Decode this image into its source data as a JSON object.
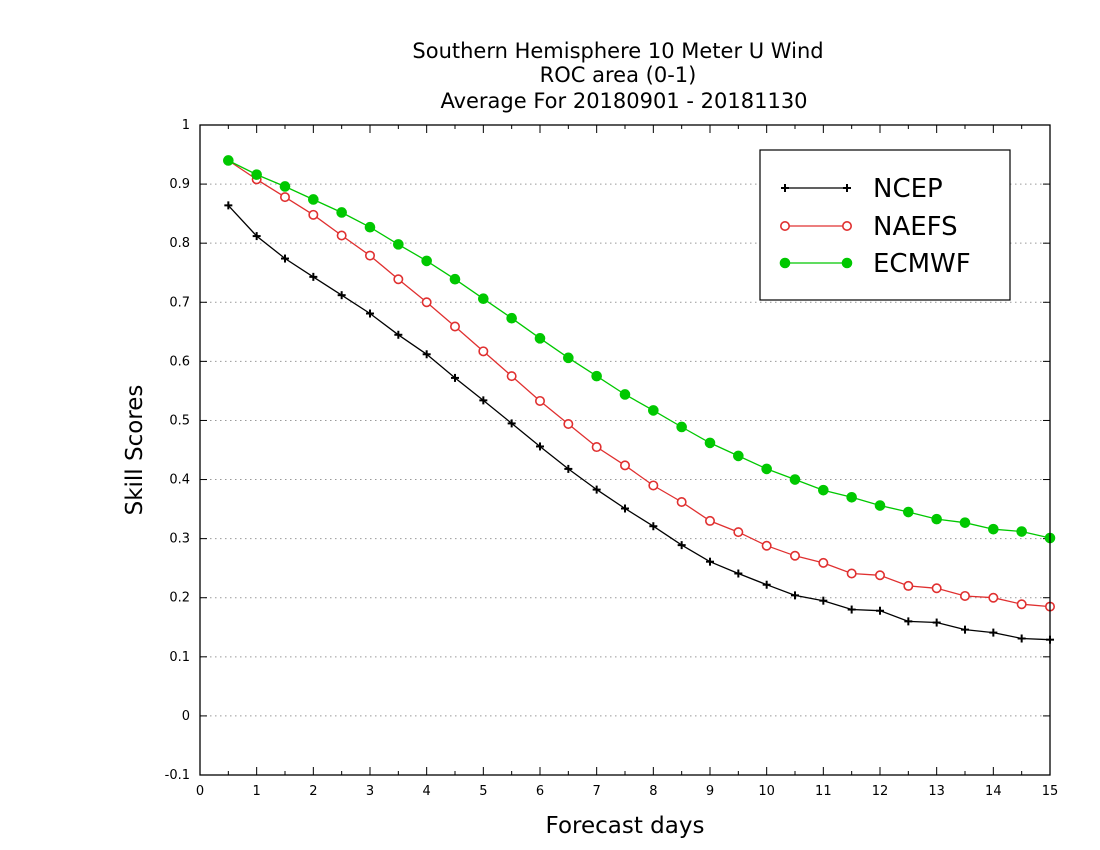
{
  "chart_data": {
    "type": "line",
    "title_lines": [
      "Southern Hemisphere 10 Meter U Wind",
      "ROC area (0-1)",
      "Average For 20180901 - 20181130"
    ],
    "xlabel": "Forecast days",
    "ylabel": "Skill Scores",
    "xlim": [
      0,
      15
    ],
    "ylim": [
      -0.1,
      1
    ],
    "x_ticks": [
      0,
      1,
      2,
      3,
      4,
      5,
      6,
      7,
      8,
      9,
      10,
      11,
      12,
      13,
      14,
      15
    ],
    "x_tick_labels": [
      "0",
      "1",
      "2",
      "3",
      "4",
      "5",
      "6",
      "7",
      "8",
      "9",
      "10",
      "11",
      "12",
      "13",
      "14",
      "15"
    ],
    "y_ticks": [
      -0.1,
      0,
      0.1,
      0.2,
      0.3,
      0.4,
      0.5,
      0.6,
      0.7,
      0.8,
      0.9,
      1
    ],
    "y_tick_labels": [
      "-0.1",
      "0",
      "0.1",
      "0.2",
      "0.3",
      "0.4",
      "0.5",
      "0.6",
      "0.7",
      "0.8",
      "0.9",
      "1"
    ],
    "grid": "horizontal dotted",
    "legend_position": "top-right",
    "x": [
      0.5,
      1,
      1.5,
      2,
      2.5,
      3,
      3.5,
      4,
      4.5,
      5,
      5.5,
      6,
      6.5,
      7,
      7.5,
      8,
      8.5,
      9,
      9.5,
      10,
      10.5,
      11,
      11.5,
      12,
      12.5,
      13,
      13.5,
      14,
      14.5,
      15
    ],
    "series": [
      {
        "name": "NCEP",
        "color": "#000000",
        "marker": "plus",
        "values": [
          0.864,
          0.812,
          0.774,
          0.743,
          0.712,
          0.681,
          0.645,
          0.612,
          0.572,
          0.534,
          0.495,
          0.456,
          0.418,
          0.383,
          0.351,
          0.321,
          0.289,
          0.261,
          0.241,
          0.222,
          0.204,
          0.195,
          0.18,
          0.178,
          0.16,
          0.158,
          0.146,
          0.141,
          0.131,
          0.129
        ]
      },
      {
        "name": "NAEFS",
        "color": "#e03030",
        "marker": "open-circle",
        "values": [
          0.94,
          0.908,
          0.878,
          0.848,
          0.813,
          0.779,
          0.739,
          0.7,
          0.659,
          0.617,
          0.575,
          0.533,
          0.494,
          0.455,
          0.424,
          0.39,
          0.362,
          0.33,
          0.311,
          0.288,
          0.271,
          0.259,
          0.241,
          0.238,
          0.22,
          0.216,
          0.203,
          0.2,
          0.189,
          0.185
        ]
      },
      {
        "name": "ECMWF",
        "color": "#00c800",
        "marker": "filled-circle",
        "values": [
          0.94,
          0.916,
          0.896,
          0.874,
          0.852,
          0.827,
          0.798,
          0.77,
          0.739,
          0.706,
          0.673,
          0.639,
          0.606,
          0.575,
          0.544,
          0.517,
          0.489,
          0.462,
          0.44,
          0.418,
          0.4,
          0.382,
          0.37,
          0.356,
          0.345,
          0.333,
          0.327,
          0.316,
          0.312,
          0.301
        ]
      }
    ]
  }
}
